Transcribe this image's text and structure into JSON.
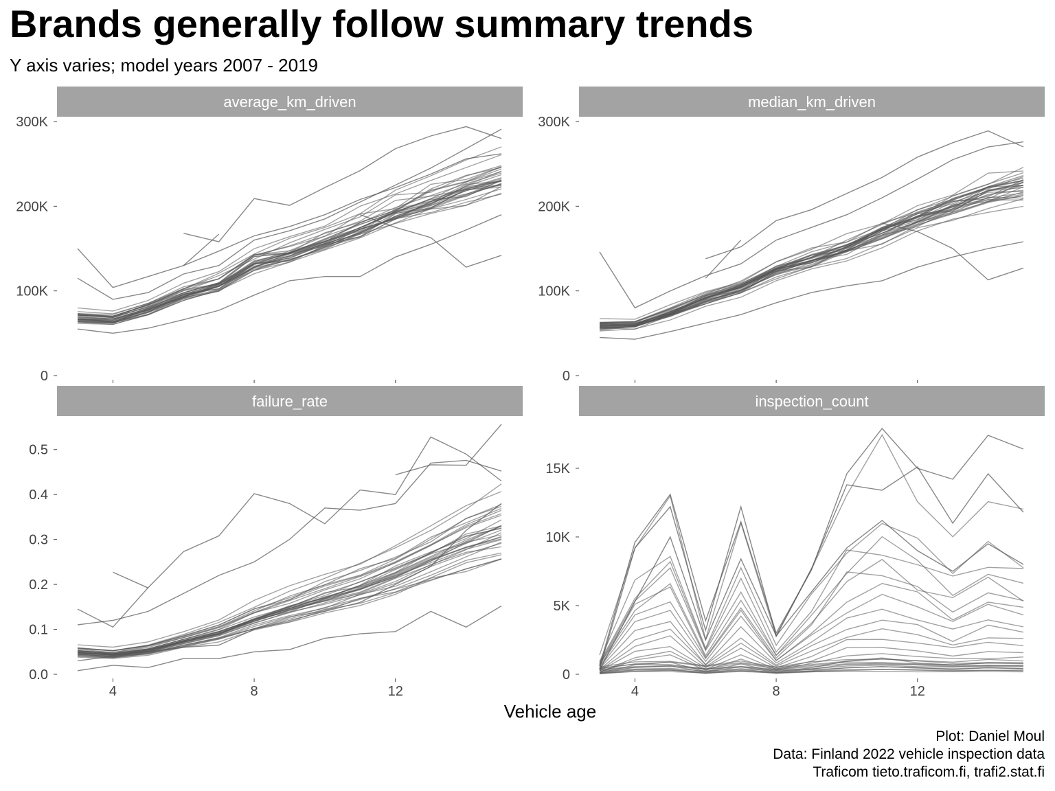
{
  "title": "Brands generally follow summary trends",
  "subtitle": "Y axis varies; model years 2007 - 2019",
  "caption": [
    "Plot: Daniel Moul",
    "Data: Finland 2022 vehicle inspection data",
    "Traficom tieto.traficom.fi, trafi2.stat.fi"
  ],
  "colors": {
    "strip": "#a3a3a3",
    "line": "#555555",
    "tick": "#444444"
  },
  "chart_data": [
    {
      "type": "line",
      "facet": "average_km_driven",
      "xlabel": "",
      "ylabel": "",
      "xlim": [
        3,
        15
      ],
      "ylim": [
        0,
        300000
      ],
      "xticks": [
        4,
        8,
        12
      ],
      "xtick_labels": [
        "",
        "",
        ""
      ],
      "yticks": [
        0,
        100000,
        200000,
        300000
      ],
      "ytick_labels": [
        "0",
        "100K",
        "200K",
        "300K"
      ],
      "x": [
        3,
        4,
        5,
        6,
        7,
        8,
        9,
        10,
        11,
        12,
        13,
        14,
        15
      ],
      "summary": {
        "base": [
          68000,
          66000,
          78000,
          95000,
          107000,
          132000,
          143000,
          157000,
          172000,
          190000,
          205000,
          218000,
          230000
        ],
        "spread": 0.16
      },
      "series": [
        {
          "values": [
            150000,
            104000,
            117000,
            130000,
            147000,
            165000,
            176000,
            190000,
            208000,
            222000,
            238000,
            256000,
            262000
          ]
        },
        {
          "values": [
            null,
            null,
            null,
            168000,
            158000,
            209000,
            201000,
            222000,
            242000,
            268000,
            283000,
            294000,
            280000
          ]
        },
        {
          "values": [
            null,
            null,
            null,
            130000,
            167000,
            null,
            null,
            null,
            null,
            null,
            null,
            null,
            null
          ]
        },
        {
          "values": [
            null,
            null,
            null,
            null,
            null,
            null,
            null,
            null,
            190000,
            175000,
            163000,
            128000,
            142000
          ]
        },
        {
          "values": [
            115000,
            90000,
            98000,
            120000,
            130000,
            160000,
            171000,
            185000,
            205000,
            225000,
            245000,
            268000,
            291000
          ]
        },
        {
          "values": [
            55000,
            50000,
            56000,
            66000,
            77000,
            95000,
            112000,
            117000,
            117000,
            140000,
            155000,
            172000,
            190000
          ]
        }
      ]
    },
    {
      "type": "line",
      "facet": "median_km_driven",
      "xlabel": "",
      "ylabel": "",
      "xlim": [
        3,
        15
      ],
      "ylim": [
        0,
        300000
      ],
      "xticks": [
        4,
        8,
        12
      ],
      "xtick_labels": [
        "",
        "",
        ""
      ],
      "yticks": [
        0,
        100000,
        200000,
        300000
      ],
      "ytick_labels": [
        "0",
        "100K",
        "200K",
        "300K"
      ],
      "x": [
        3,
        4,
        5,
        6,
        7,
        8,
        9,
        10,
        11,
        12,
        13,
        14,
        15
      ],
      "summary": {
        "base": [
          58000,
          60000,
          73000,
          90000,
          103000,
          123000,
          135000,
          150000,
          167000,
          184000,
          200000,
          212000,
          222000
        ],
        "spread": 0.16
      },
      "series": [
        {
          "values": [
            146000,
            80000,
            100000,
            118000,
            132000,
            160000,
            175000,
            190000,
            210000,
            232000,
            255000,
            270000,
            276000
          ]
        },
        {
          "values": [
            null,
            null,
            null,
            115000,
            160000,
            null,
            null,
            null,
            null,
            null,
            null,
            null,
            null
          ]
        },
        {
          "values": [
            null,
            null,
            null,
            138000,
            152000,
            183000,
            196000,
            215000,
            234000,
            258000,
            275000,
            289000,
            270000
          ]
        },
        {
          "values": [
            null,
            null,
            null,
            null,
            null,
            null,
            null,
            null,
            180000,
            170000,
            150000,
            113000,
            127000
          ]
        },
        {
          "values": [
            45000,
            43000,
            52000,
            62000,
            72000,
            86000,
            98000,
            106000,
            112000,
            128000,
            140000,
            150000,
            158000
          ]
        }
      ]
    },
    {
      "type": "line",
      "facet": "failure_rate",
      "xlabel": "",
      "ylabel": "",
      "xlim": [
        3,
        15
      ],
      "ylim": [
        0,
        0.55
      ],
      "xticks": [
        4,
        8,
        12
      ],
      "xtick_labels": [
        "4",
        "8",
        "12"
      ],
      "yticks": [
        0,
        0.1,
        0.2,
        0.3,
        0.4,
        0.5
      ],
      "ytick_labels": [
        "0.0",
        "0.1",
        "0.2",
        "0.3",
        "0.4",
        "0.5"
      ],
      "x": [
        3,
        4,
        5,
        6,
        7,
        8,
        9,
        10,
        11,
        12,
        13,
        14,
        15
      ],
      "summary": {
        "base": [
          0.05,
          0.045,
          0.055,
          0.075,
          0.095,
          0.125,
          0.15,
          0.175,
          0.2,
          0.23,
          0.265,
          0.3,
          0.33
        ],
        "spread": 0.32
      },
      "series": [
        {
          "values": [
            0.145,
            0.105,
            0.193,
            0.273,
            0.308,
            0.402,
            0.38,
            0.335,
            0.41,
            0.4,
            0.528,
            0.49,
            0.43
          ]
        },
        {
          "values": [
            null,
            0.227,
            0.192,
            null,
            null,
            null,
            null,
            null,
            null,
            null,
            null,
            null,
            null
          ]
        },
        {
          "values": [
            0.11,
            0.12,
            0.14,
            0.18,
            0.22,
            0.25,
            0.3,
            0.37,
            0.365,
            0.38,
            0.47,
            0.476,
            0.452
          ]
        },
        {
          "values": [
            null,
            null,
            null,
            null,
            null,
            null,
            null,
            null,
            null,
            0.444,
            0.466,
            0.465,
            0.56
          ]
        },
        {
          "values": [
            0.008,
            0.02,
            0.015,
            0.035,
            0.035,
            0.05,
            0.055,
            0.08,
            0.09,
            0.095,
            0.14,
            0.105,
            0.152
          ]
        },
        {
          "values": [
            0.03,
            0.04,
            0.05,
            0.06,
            0.065,
            0.1,
            0.12,
            0.14,
            0.16,
            0.2,
            0.24,
            0.32,
            0.38
          ]
        }
      ]
    },
    {
      "type": "line",
      "facet": "inspection_count",
      "xlabel": "",
      "ylabel": "",
      "xlim": [
        3,
        15
      ],
      "ylim": [
        0,
        18000
      ],
      "xticks": [
        4,
        8,
        12
      ],
      "xtick_labels": [
        "4",
        "8",
        "12"
      ],
      "yticks": [
        0,
        5000,
        10000,
        15000
      ],
      "ytick_labels": [
        "0",
        "5K",
        "10K",
        "15K"
      ],
      "x": [
        3,
        4,
        5,
        6,
        7,
        8,
        9,
        10,
        11,
        12,
        13,
        14,
        15
      ],
      "profile": [
        0.08,
        0.55,
        0.72,
        0.15,
        0.62,
        0.15,
        0.42,
        0.78,
        0.9,
        0.75,
        0.6,
        0.72,
        0.66
      ],
      "scales": [
        17500,
        13000,
        11000,
        10000,
        9000,
        8500,
        7500,
        6500,
        5500,
        4500,
        3800,
        3000,
        2300,
        1800,
        1200,
        900,
        600,
        400
      ],
      "series": [
        {
          "values": [
            600,
            9600,
            13100,
            3900,
            11100,
            3000,
            7600,
            14600,
            17900,
            15000,
            14200,
            17400,
            16400
          ]
        },
        {
          "values": [
            400,
            9200,
            12200,
            3200,
            12200,
            2800,
            7700,
            13800,
            13400,
            15100,
            11000,
            14600,
            11800
          ]
        },
        {
          "values": [
            300,
            5300,
            10000,
            2500,
            8400,
            2800,
            6000,
            9200,
            11200,
            9000,
            7500,
            9500,
            8000
          ]
        }
      ]
    }
  ],
  "xaxis_title": "Vehicle age"
}
